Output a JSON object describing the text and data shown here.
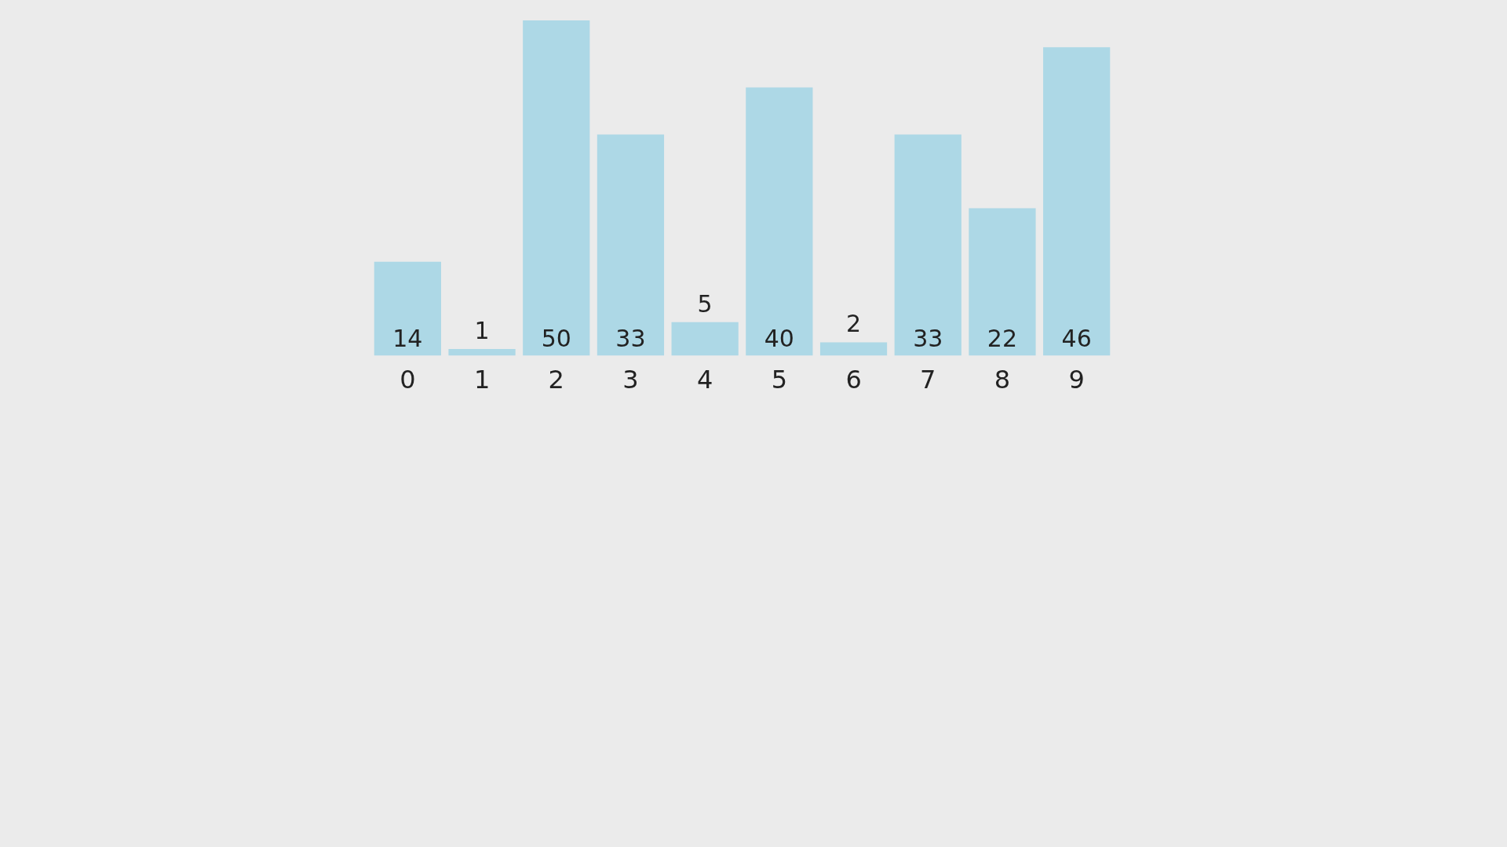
{
  "chart_data": {
    "type": "bar",
    "categories": [
      "0",
      "1",
      "2",
      "3",
      "4",
      "5",
      "6",
      "7",
      "8",
      "9"
    ],
    "values": [
      14,
      1,
      50,
      33,
      5,
      40,
      2,
      33,
      22,
      46
    ],
    "color": "#add8e6",
    "data_labels": true,
    "grid": false,
    "legend": false
  }
}
